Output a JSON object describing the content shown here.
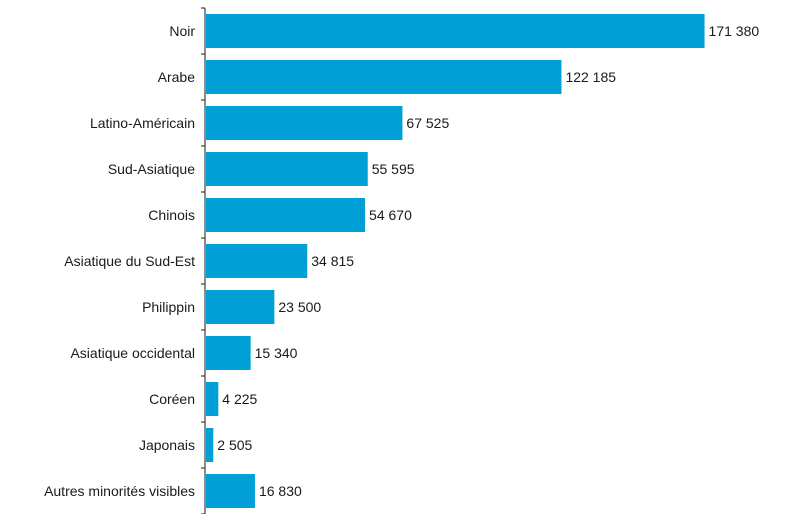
{
  "chart_data": {
    "type": "bar",
    "orientation": "horizontal",
    "title": "",
    "xlabel": "",
    "ylabel": "",
    "grid": false,
    "legend": "none",
    "bar_color": "#00a0d6",
    "xlim": [
      0,
      176000
    ],
    "categories": [
      "Noir",
      "Arabe",
      "Latino-Américain",
      "Sud-Asiatique",
      "Chinois",
      "Asiatique du Sud-Est",
      "Philippin",
      "Asiatique occidental",
      "Coréen",
      "Japonais",
      "Autres minorités visibles"
    ],
    "values": [
      171380,
      122185,
      67525,
      55595,
      54670,
      34815,
      23500,
      15340,
      4225,
      2505,
      16830
    ],
    "value_labels": [
      "171 380",
      "122 185",
      "67 525",
      "55 595",
      "54 670",
      "34 815",
      "23 500",
      "15 340",
      "4 225",
      "2 505",
      "16 830"
    ]
  }
}
